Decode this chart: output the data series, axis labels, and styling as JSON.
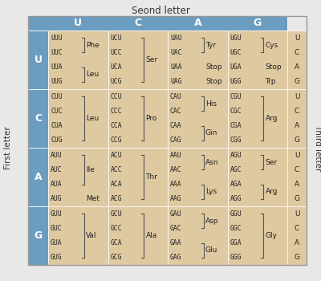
{
  "title": "Seond letter",
  "col_headers": [
    "U",
    "C",
    "A",
    "G"
  ],
  "row_headers": [
    "U",
    "C",
    "A",
    "G"
  ],
  "first_letter_label": "First letter",
  "third_letter_label": "Third letter",
  "header_bg": "#6a9dc0",
  "cell_bg": "#dfc9a0",
  "header_text_color": "#ffffff",
  "cell_text_color": "#222222",
  "bg_color": "#e8e8e8",
  "cells": [
    [
      {
        "codons": [
          "UUU",
          "UUC",
          "UUA",
          "UUG"
        ],
        "groups": [
          [
            [
              0,
              1
            ],
            "Phe"
          ],
          [
            [
              2,
              3
            ],
            "Leu"
          ]
        ]
      },
      {
        "codons": [
          "UCU",
          "UCC",
          "UCA",
          "UCG"
        ],
        "groups": [
          [
            [
              0,
              1,
              2,
              3
            ],
            "Ser"
          ]
        ]
      },
      {
        "codons": [
          "UAU",
          "UAC",
          "UAA",
          "UAG"
        ],
        "groups": [
          [
            [
              0,
              1
            ],
            "Tyr"
          ],
          [
            [
              2
            ],
            "Stop"
          ],
          [
            [
              3
            ],
            "Stop"
          ]
        ]
      },
      {
        "codons": [
          "UGU",
          "UGC",
          "UGA",
          "UGG"
        ],
        "groups": [
          [
            [
              0,
              1
            ],
            "Cys"
          ],
          [
            [
              2
            ],
            "Stop"
          ],
          [
            [
              3
            ],
            "Trp"
          ]
        ]
      }
    ],
    [
      {
        "codons": [
          "CUU",
          "CUC",
          "CUA",
          "CUG"
        ],
        "groups": [
          [
            [
              0,
              1,
              2,
              3
            ],
            "Leu"
          ]
        ]
      },
      {
        "codons": [
          "CCU",
          "CCC",
          "CCA",
          "CCG"
        ],
        "groups": [
          [
            [
              0,
              1,
              2,
              3
            ],
            "Pro"
          ]
        ]
      },
      {
        "codons": [
          "CAU",
          "CAC",
          "CAA",
          "CAG"
        ],
        "groups": [
          [
            [
              0,
              1
            ],
            "His"
          ],
          [
            [
              2,
              3
            ],
            "Gin"
          ]
        ]
      },
      {
        "codons": [
          "CGU",
          "CGC",
          "CGA",
          "CGG"
        ],
        "groups": [
          [
            [
              0,
              1,
              2,
              3
            ],
            "Arg"
          ]
        ]
      }
    ],
    [
      {
        "codons": [
          "AUU",
          "AUC",
          "AUA",
          "AUG"
        ],
        "groups": [
          [
            [
              0,
              1,
              2
            ],
            "Ile"
          ],
          [
            [
              3
            ],
            "Met"
          ]
        ]
      },
      {
        "codons": [
          "ACU",
          "ACC",
          "ACA",
          "ACG"
        ],
        "groups": [
          [
            [
              0,
              1,
              2,
              3
            ],
            "Thr"
          ]
        ]
      },
      {
        "codons": [
          "AAU",
          "AAC",
          "AAA",
          "AAG"
        ],
        "groups": [
          [
            [
              0,
              1
            ],
            "Asn"
          ],
          [
            [
              2,
              3
            ],
            "Lys"
          ]
        ]
      },
      {
        "codons": [
          "AGU",
          "AGC",
          "AGA",
          "AGG"
        ],
        "groups": [
          [
            [
              0,
              1
            ],
            "Ser"
          ],
          [
            [
              2,
              3
            ],
            "Arg"
          ]
        ]
      }
    ],
    [
      {
        "codons": [
          "GUU",
          "GUC",
          "GUA",
          "GUG"
        ],
        "groups": [
          [
            [
              0,
              1,
              2,
              3
            ],
            "Val"
          ]
        ]
      },
      {
        "codons": [
          "GCU",
          "GCC",
          "GCA",
          "GCG"
        ],
        "groups": [
          [
            [
              0,
              1,
              2,
              3
            ],
            "Ala"
          ]
        ]
      },
      {
        "codons": [
          "GAU",
          "GAC",
          "GAA",
          "GAG"
        ],
        "groups": [
          [
            [
              0,
              1
            ],
            "Asp"
          ],
          [
            [
              2,
              3
            ],
            "Glu"
          ]
        ]
      },
      {
        "codons": [
          "GGU",
          "GGC",
          "GGA",
          "GGG"
        ],
        "groups": [
          [
            [
              0,
              1,
              2,
              3
            ],
            "Gly"
          ]
        ]
      }
    ]
  ],
  "third_letters": [
    "U",
    "C",
    "A",
    "G"
  ]
}
